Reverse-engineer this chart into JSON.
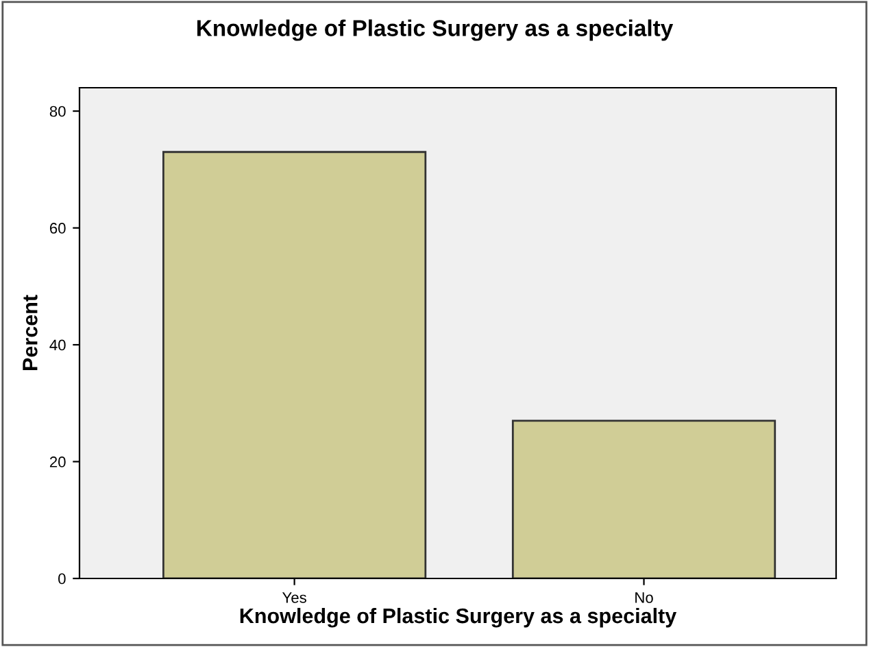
{
  "chart_data": {
    "type": "bar",
    "title": "Knowledge of Plastic Surgery as a specialty",
    "xlabel": "Knowledge of Plastic Surgery as a specialty",
    "ylabel": "Percent",
    "categories": [
      "Yes",
      "No"
    ],
    "values": [
      73,
      27
    ],
    "color": "#d0cd96",
    "ylim": [
      0,
      84
    ],
    "yticks": [
      0,
      20,
      40,
      60,
      80
    ],
    "grid": false
  }
}
